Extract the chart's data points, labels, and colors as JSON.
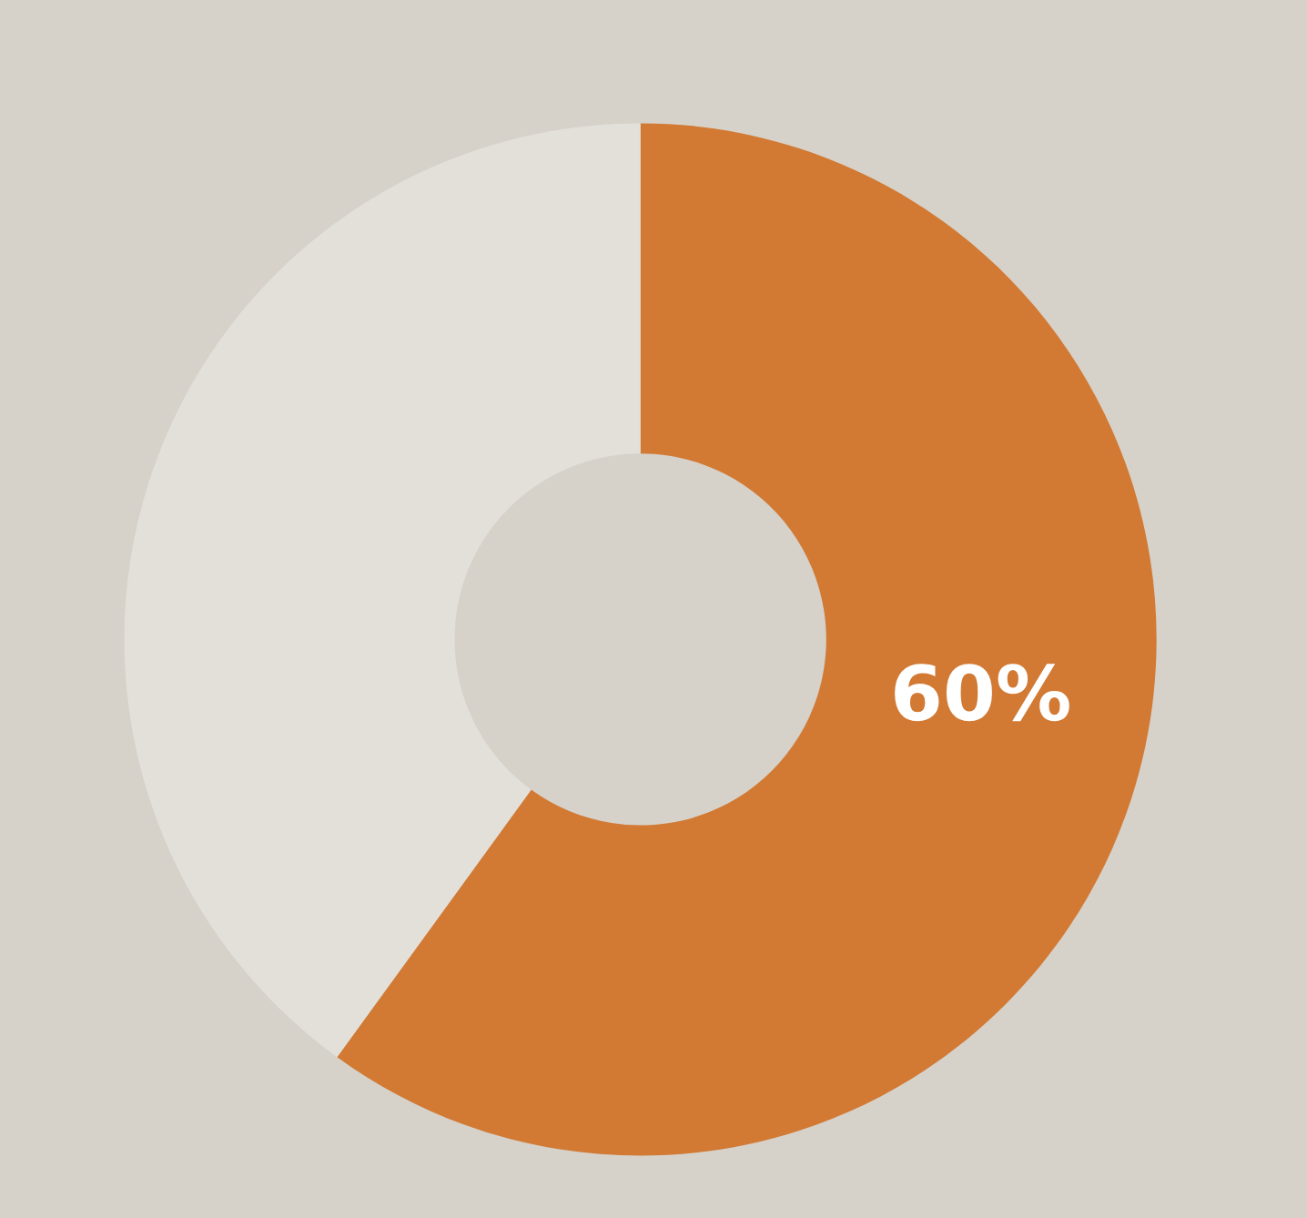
{
  "chart_data": {
    "type": "donut",
    "categories": [
      null,
      null
    ],
    "values": [
      60,
      40
    ],
    "colors": [
      "#d27a34",
      "#e3e0da"
    ],
    "value_labels": [
      "60%",
      null
    ]
  }
}
